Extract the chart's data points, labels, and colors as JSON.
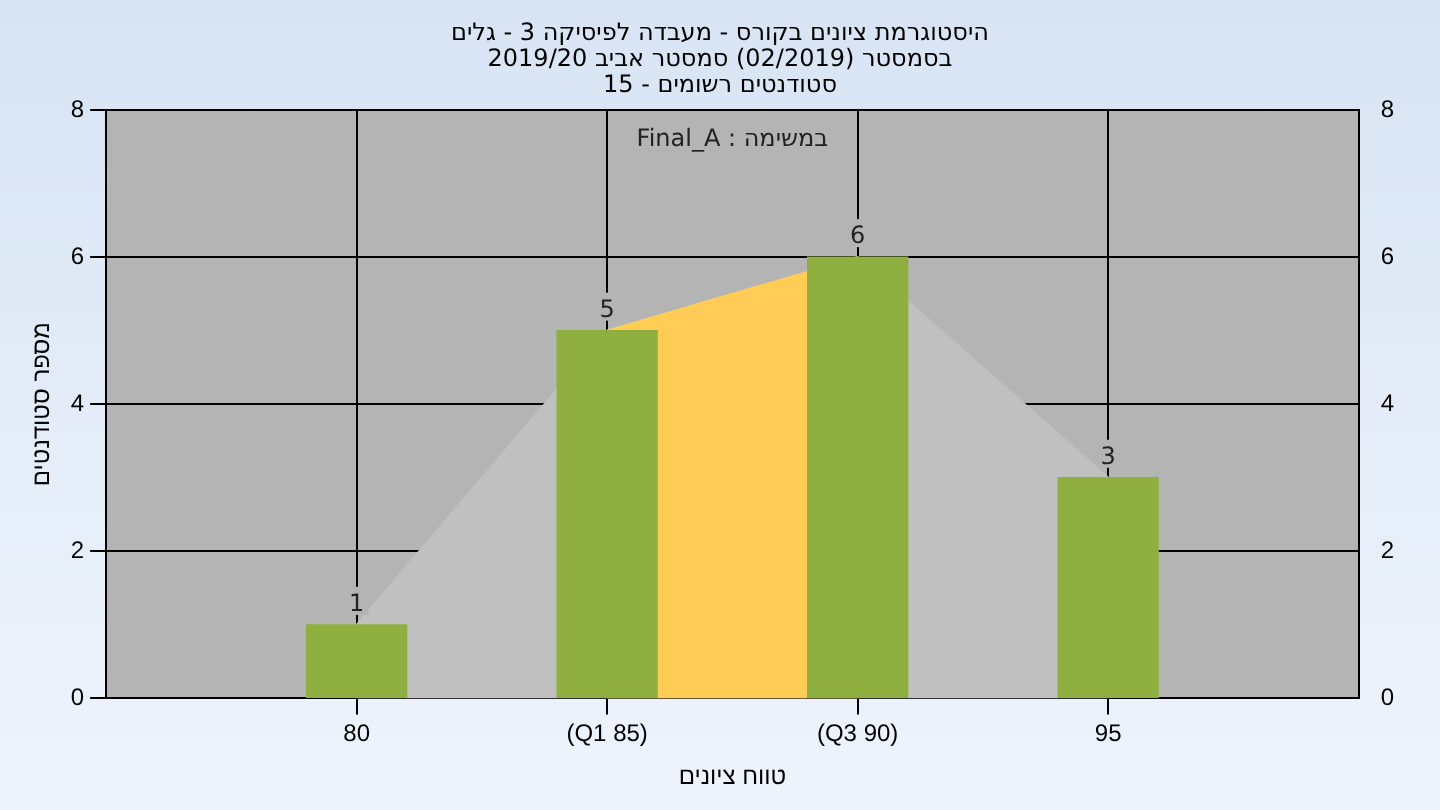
{
  "chart_data": {
    "type": "bar",
    "title": "היסטוגרמת ציונים בקורס - מעבדה לפיסיקה 3 - גלים",
    "subtitle": [
      "בסמסטר  (02/2019)  סמסטר אביב 2019/20",
      "סטודנטים רשומים - 15"
    ],
    "xlabel": "טווח ציונים",
    "ylabel": "מספר סטודנטים",
    "annotations": [
      "במשימה : Final_A"
    ],
    "categories": [
      "80",
      "(Q1 85)",
      "(Q3 90)",
      "95"
    ],
    "series": [
      {
        "type": "area",
        "color": "#c0c0c0",
        "values": [
          1,
          5,
          6,
          3
        ]
      },
      {
        "type": "area",
        "color": "#ffcc55",
        "values": [
          null,
          5,
          6,
          null
        ]
      },
      {
        "color": "#8fb040",
        "values": [
          1,
          5,
          6,
          3
        ],
        "value_labels": [
          "1",
          "5",
          "6",
          "3"
        ]
      }
    ],
    "ylim": [
      0,
      8
    ],
    "yticks": [
      0,
      2,
      4,
      6,
      8
    ],
    "y2lim": [
      0,
      8
    ],
    "y2ticks": [
      0,
      2,
      4,
      6,
      8
    ],
    "grid": true,
    "legend": false
  }
}
